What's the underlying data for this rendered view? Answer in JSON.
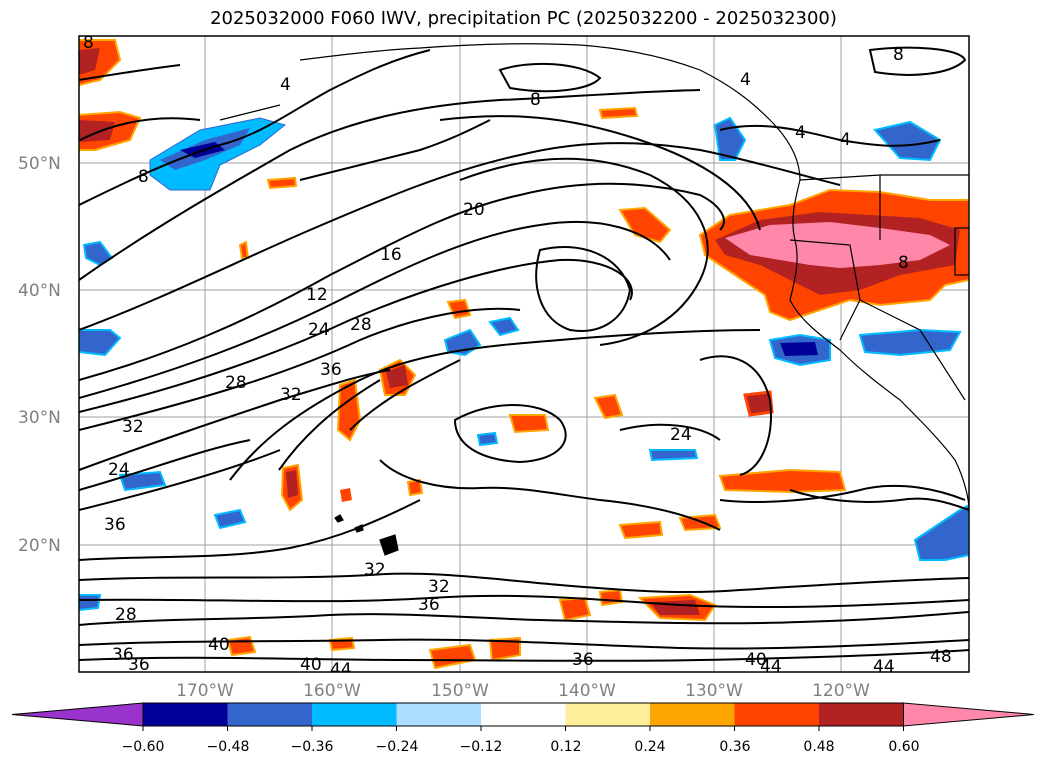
{
  "title": "2025032000 F060 IWV, precipitation PC (2025032200 - 2025032300)",
  "map": {
    "lat_labels": [
      "50°N",
      "40°N",
      "30°N",
      "20°N"
    ],
    "lon_labels": [
      "170°W",
      "160°W",
      "150°W",
      "140°W",
      "130°W",
      "120°W"
    ],
    "contour_labels": [
      "4",
      "4",
      "4",
      "4",
      "8",
      "8",
      "8",
      "8",
      "8",
      "12",
      "16",
      "20",
      "24",
      "24",
      "24",
      "28",
      "28",
      "28",
      "32",
      "32",
      "32",
      "32",
      "36",
      "36",
      "36",
      "36",
      "36",
      "36",
      "40",
      "40",
      "40",
      "44",
      "44",
      "44",
      "48"
    ],
    "ocean_color": "#ffffff",
    "contour_color": "#000000",
    "grid_color": "#a0a0a0"
  },
  "colorbar": {
    "colors": [
      "#9933cc",
      "#000099",
      "#3366cc",
      "#00bbff",
      "#aaddff",
      "#ffffff",
      "#ffee99",
      "#ffa500",
      "#ff4400",
      "#b22222",
      "#ff88aa"
    ],
    "tick_labels": [
      "−0.60",
      "−0.48",
      "−0.36",
      "−0.24",
      "−0.12",
      "0.12",
      "0.24",
      "0.36",
      "0.48",
      "0.60"
    ],
    "extend": "both"
  }
}
